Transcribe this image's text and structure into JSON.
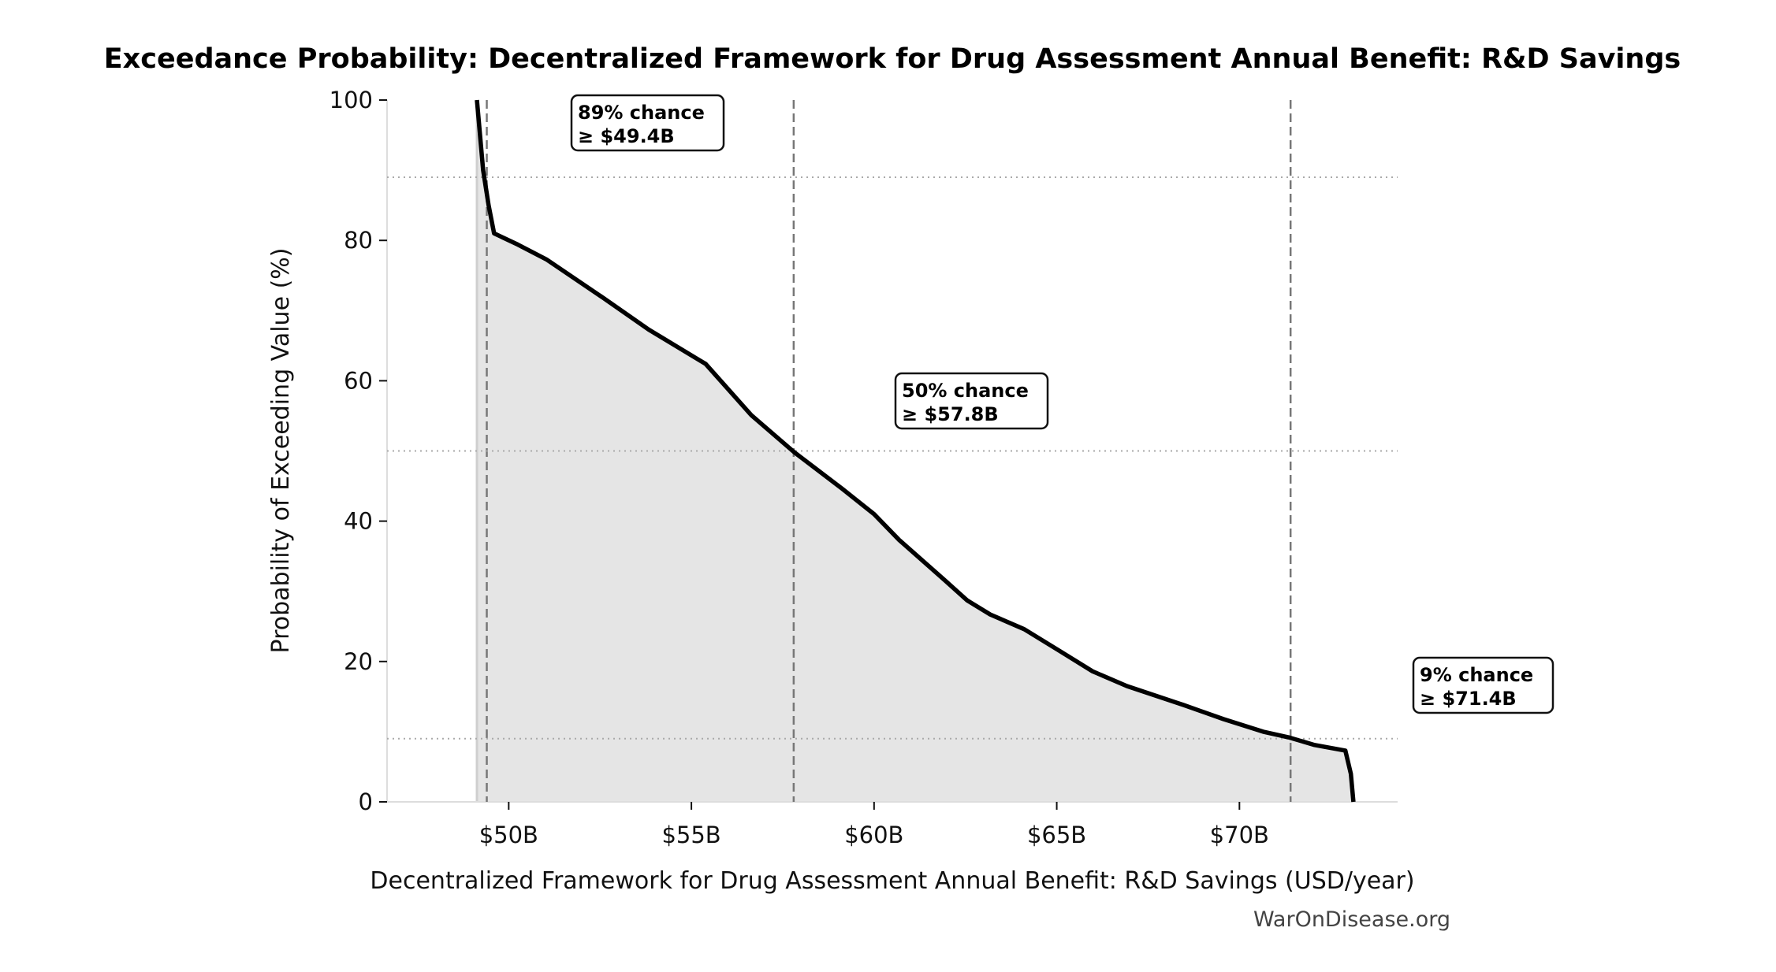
{
  "chart_data": {
    "type": "area",
    "title": "Exceedance Probability: Decentralized Framework for Drug Assessment Annual Benefit: R&D Savings",
    "xlabel": "Decentralized Framework for Drug Assessment Annual Benefit: R&D Savings (USD/year)",
    "ylabel": "Probability of Exceeding Value (%)",
    "xlim": [
      46.67,
      74.33
    ],
    "ylim": [
      0,
      100
    ],
    "x_unit": "USD billions/year",
    "xticks": [
      50,
      55,
      60,
      65,
      70
    ],
    "xtick_labels": [
      "$50B",
      "$55B",
      "$60B",
      "$65B",
      "$70B"
    ],
    "yticks": [
      0,
      20,
      40,
      60,
      80,
      100
    ],
    "ytick_labels": [
      "0",
      "20",
      "40",
      "60",
      "80",
      "100"
    ],
    "grid": false,
    "line_color": "#000000",
    "fill_color": "#e5e5e5",
    "x": [
      49.13,
      49.3,
      49.45,
      49.6,
      50.25,
      51.03,
      52.59,
      53.83,
      55.39,
      56.64,
      57.82,
      59.13,
      60.0,
      60.69,
      61.93,
      62.55,
      63.18,
      64.11,
      65.05,
      65.98,
      66.92,
      68.47,
      69.56,
      70.65,
      71.34,
      72.06,
      72.9,
      73.05,
      73.12
    ],
    "y": [
      100,
      90,
      85,
      81,
      79.4,
      77.3,
      71.8,
      67.3,
      62.4,
      55.1,
      49.8,
      44.6,
      41.0,
      37.3,
      31.6,
      28.7,
      26.7,
      24.6,
      21.6,
      18.6,
      16.5,
      13.8,
      11.8,
      10.0,
      9.2,
      8.1,
      7.3,
      4.0,
      0
    ],
    "annotations": [
      {
        "probability": 89,
        "value": 49.4,
        "line1": "89% chance",
        "line2": "≥ $49.4B"
      },
      {
        "probability": 50,
        "value": 57.8,
        "line1": "50% chance",
        "line2": "≥ $57.8B"
      },
      {
        "probability": 9,
        "value": 71.4,
        "line1": "9% chance",
        "line2": "≥ $71.4B"
      }
    ]
  },
  "watermark": "WarOnDisease.org"
}
